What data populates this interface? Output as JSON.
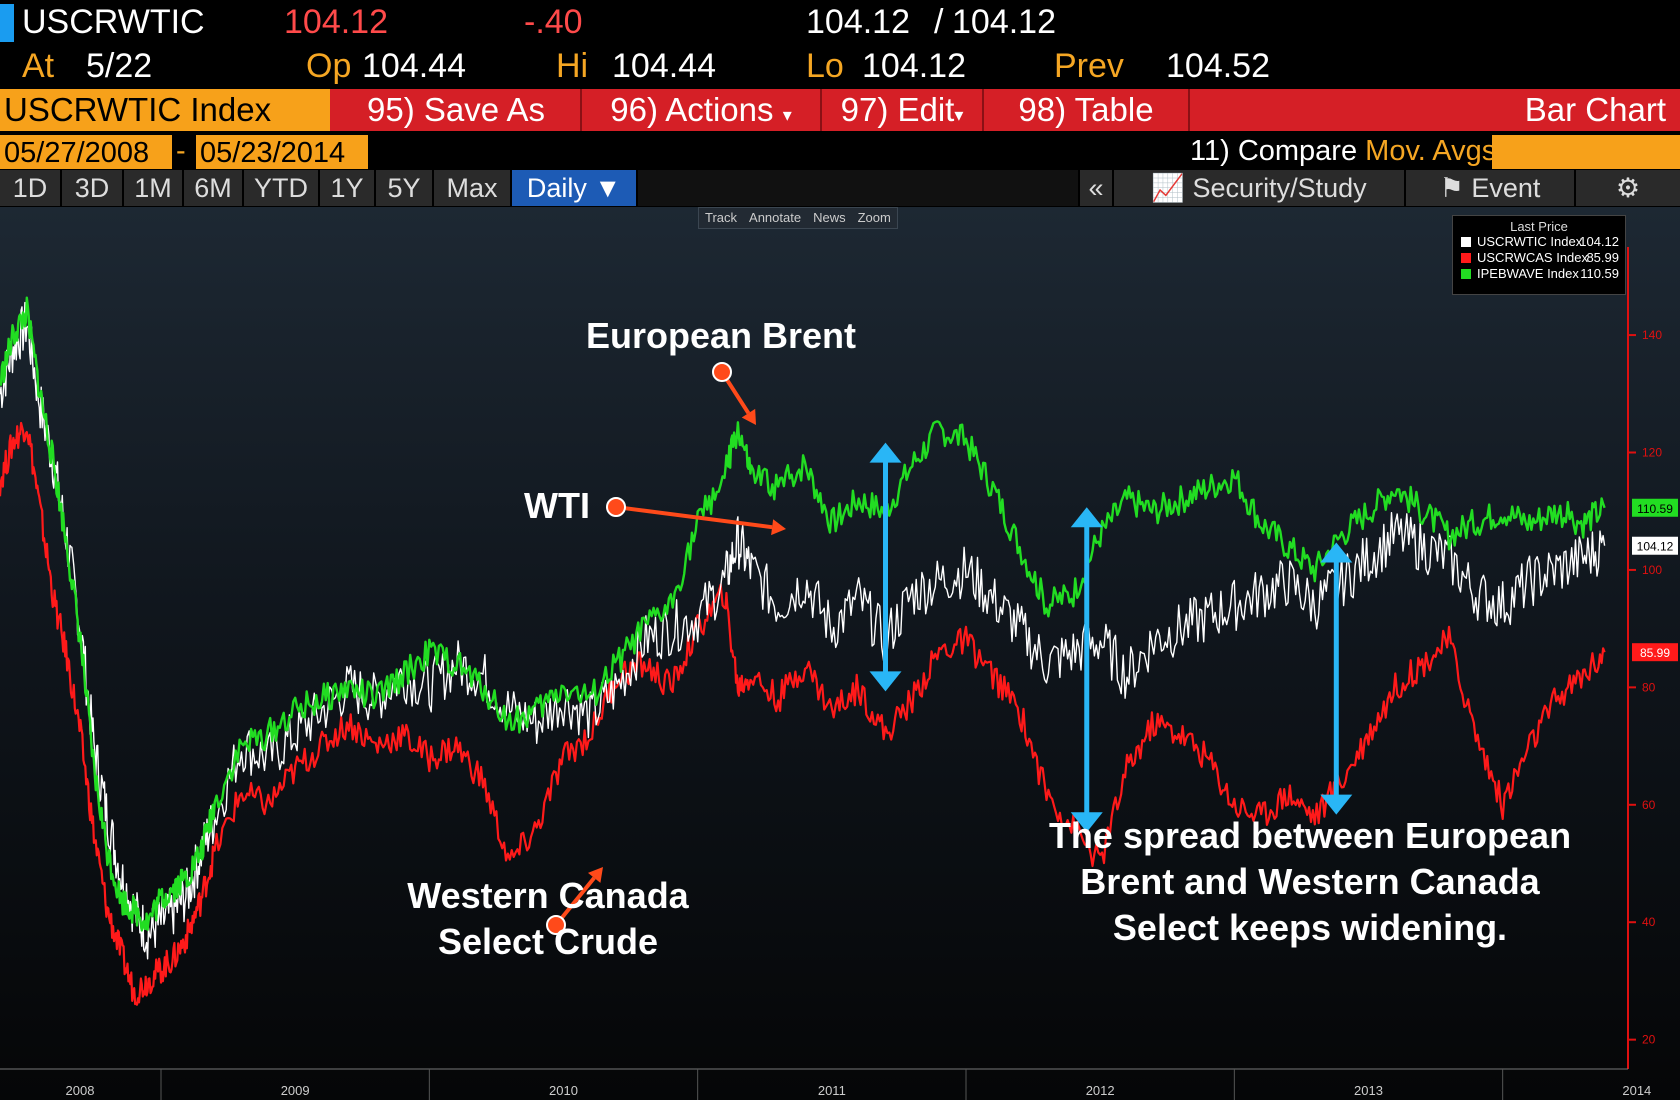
{
  "quote": {
    "ticker": "USCRWTIC",
    "last": "104.12",
    "change": "-.40",
    "bid": "104.12",
    "sep": "/",
    "ask": "104.12",
    "at_label": "At",
    "at_value": "5/22",
    "op_label": "Op",
    "op_value": "104.44",
    "hi_label": "Hi",
    "hi_value": "104.44",
    "lo_label": "Lo",
    "lo_value": "104.12",
    "prev_label": "Prev",
    "prev_value": "104.52"
  },
  "toolbar": {
    "security": "USCRWTIC Index",
    "save_as": "95) Save As",
    "actions": "96) Actions",
    "edit": "97) Edit",
    "table": "98) Table",
    "chart_type": "Bar Chart"
  },
  "dates": {
    "start": "05/27/2008",
    "dash": "-",
    "end": "05/23/2014",
    "compare": "11) Compare",
    "mov_avgs": "Mov. Avgs"
  },
  "periods": [
    "1D",
    "3D",
    "1M",
    "6M",
    "YTD",
    "1Y",
    "5Y",
    "Max",
    "Daily ▼"
  ],
  "right_buttons": {
    "collapse": "«",
    "security_study": "Security/Study",
    "event": "Event"
  },
  "mini_toolbar": [
    "Track",
    "Annotate",
    "News",
    "Zoom"
  ],
  "colors": {
    "wti": "#ffffff",
    "wcs": "#ff1a1a",
    "brent": "#22dd22",
    "arrow": "#29b6f6",
    "pointer": "#ff4a1a",
    "axis": "#e01010"
  },
  "chart_data": {
    "type": "line",
    "legend": {
      "title": "Last Price",
      "placement": "top-right",
      "items": [
        {
          "name": "USCRWTIC Index",
          "value": "104.12"
        },
        {
          "name": "USCRWCAS Index",
          "value": "85.99"
        },
        {
          "name": "IPEBWAVE Index",
          "value": "110.59"
        }
      ]
    },
    "last_value_tags": [
      "110.59",
      "104.12",
      "85.99"
    ],
    "y_axis": {
      "side": "right",
      "ticks": [
        20,
        40,
        60,
        80,
        100,
        120,
        140
      ],
      "range": [
        15,
        155
      ]
    },
    "x_axis": {
      "ticks": [
        "2008",
        "2009",
        "2010",
        "2011",
        "2012",
        "2013",
        "2014"
      ],
      "range": [
        2008.4,
        2014.4
      ]
    },
    "series": [
      {
        "name": "WTI",
        "x": [
          2008.4,
          2008.45,
          2008.5,
          2008.55,
          2008.6,
          2008.65,
          2008.7,
          2008.75,
          2008.8,
          2008.85,
          2008.9,
          2008.95,
          2009.0,
          2009.05,
          2009.1,
          2009.15,
          2009.2,
          2009.3,
          2009.4,
          2009.5,
          2009.6,
          2009.7,
          2009.8,
          2009.9,
          2010.0,
          2010.1,
          2010.2,
          2010.3,
          2010.4,
          2010.5,
          2010.6,
          2010.7,
          2010.8,
          2010.9,
          2011.0,
          2011.1,
          2011.15,
          2011.2,
          2011.3,
          2011.4,
          2011.5,
          2011.6,
          2011.7,
          2011.8,
          2011.9,
          2012.0,
          2012.1,
          2012.2,
          2012.3,
          2012.4,
          2012.5,
          2012.6,
          2012.7,
          2012.8,
          2012.9,
          2013.0,
          2013.1,
          2013.2,
          2013.3,
          2013.4,
          2013.5,
          2013.6,
          2013.7,
          2013.8,
          2013.9,
          2014.0,
          2014.1,
          2014.2,
          2014.3,
          2014.38
        ],
        "values": [
          130,
          138,
          142,
          128,
          118,
          105,
          90,
          70,
          58,
          48,
          42,
          38,
          40,
          42,
          45,
          52,
          58,
          70,
          68,
          72,
          76,
          80,
          78,
          82,
          80,
          84,
          82,
          76,
          74,
          78,
          75,
          80,
          88,
          90,
          92,
          98,
          105,
          100,
          94,
          98,
          90,
          95,
          88,
          96,
          98,
          100,
          95,
          90,
          84,
          86,
          88,
          82,
          88,
          90,
          92,
          94,
          96,
          98,
          94,
          98,
          102,
          106,
          104,
          102,
          96,
          94,
          98,
          100,
          102,
          104.12
        ]
      },
      {
        "name": "Western Canada Select Crude",
        "x": [
          2008.4,
          2008.45,
          2008.5,
          2008.55,
          2008.6,
          2008.65,
          2008.7,
          2008.75,
          2008.8,
          2008.85,
          2008.9,
          2008.95,
          2009.0,
          2009.05,
          2009.1,
          2009.15,
          2009.2,
          2009.3,
          2009.4,
          2009.5,
          2009.6,
          2009.7,
          2009.8,
          2009.9,
          2010.0,
          2010.1,
          2010.2,
          2010.3,
          2010.4,
          2010.5,
          2010.6,
          2010.7,
          2010.8,
          2010.9,
          2011.0,
          2011.1,
          2011.15,
          2011.2,
          2011.3,
          2011.4,
          2011.5,
          2011.6,
          2011.7,
          2011.8,
          2011.9,
          2012.0,
          2012.1,
          2012.2,
          2012.3,
          2012.4,
          2012.5,
          2012.6,
          2012.7,
          2012.8,
          2012.9,
          2013.0,
          2013.1,
          2013.2,
          2013.3,
          2013.4,
          2013.5,
          2013.6,
          2013.7,
          2013.8,
          2013.9,
          2014.0,
          2014.1,
          2014.2,
          2014.3,
          2014.38
        ],
        "values": [
          115,
          122,
          125,
          110,
          95,
          85,
          72,
          55,
          42,
          35,
          28,
          30,
          32,
          34,
          38,
          44,
          52,
          62,
          60,
          66,
          70,
          74,
          70,
          72,
          68,
          70,
          64,
          50,
          56,
          68,
          72,
          82,
          84,
          80,
          90,
          96,
          80,
          82,
          78,
          84,
          76,
          80,
          72,
          78,
          86,
          88,
          82,
          76,
          62,
          56,
          50,
          66,
          74,
          72,
          68,
          60,
          58,
          62,
          58,
          64,
          72,
          80,
          84,
          88,
          72,
          60,
          70,
          78,
          82,
          85.99
        ]
      },
      {
        "name": "European Brent",
        "x": [
          2008.4,
          2008.45,
          2008.5,
          2008.55,
          2008.6,
          2008.65,
          2008.7,
          2008.75,
          2008.8,
          2008.85,
          2008.9,
          2008.95,
          2009.0,
          2009.05,
          2009.1,
          2009.15,
          2009.2,
          2009.3,
          2009.4,
          2009.5,
          2009.6,
          2009.7,
          2009.8,
          2009.9,
          2010.0,
          2010.1,
          2010.2,
          2010.3,
          2010.4,
          2010.5,
          2010.6,
          2010.7,
          2010.8,
          2010.9,
          2011.0,
          2011.1,
          2011.15,
          2011.2,
          2011.3,
          2011.4,
          2011.5,
          2011.6,
          2011.7,
          2011.8,
          2011.9,
          2012.0,
          2012.1,
          2012.2,
          2012.3,
          2012.4,
          2012.5,
          2012.6,
          2012.7,
          2012.8,
          2012.9,
          2013.0,
          2013.1,
          2013.2,
          2013.3,
          2013.4,
          2013.5,
          2013.6,
          2013.7,
          2013.8,
          2013.9,
          2014.0,
          2014.1,
          2014.2,
          2014.3,
          2014.38
        ],
        "values": [
          132,
          140,
          144,
          130,
          118,
          104,
          88,
          66,
          52,
          44,
          42,
          40,
          44,
          46,
          48,
          52,
          60,
          70,
          72,
          76,
          78,
          80,
          78,
          82,
          86,
          84,
          80,
          74,
          76,
          80,
          78,
          84,
          90,
          94,
          108,
          116,
          124,
          116,
          114,
          118,
          108,
          112,
          110,
          118,
          124,
          122,
          114,
          104,
          94,
          96,
          106,
          112,
          110,
          112,
          114,
          116,
          108,
          104,
          100,
          106,
          110,
          114,
          110,
          106,
          108,
          110,
          108,
          110,
          108,
          110.59
        ]
      }
    ],
    "annotations": [
      {
        "text": "European Brent"
      },
      {
        "text": "WTI"
      },
      {
        "text": "Western Canada",
        "text2": "Select Crude"
      },
      {
        "text": "The spread between European",
        "text2": "Brent and Western Canada",
        "text3": "Select keeps widening."
      }
    ]
  }
}
